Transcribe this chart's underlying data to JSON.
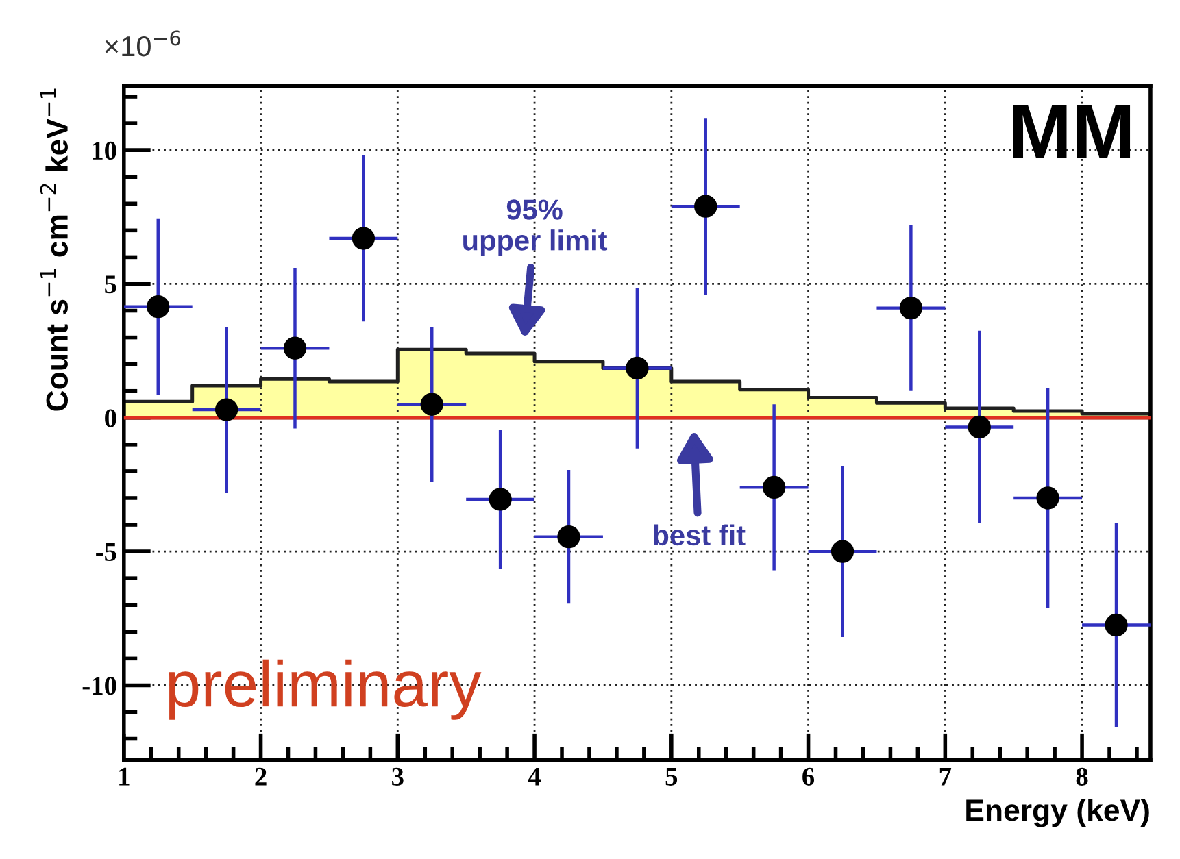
{
  "chart_data": {
    "type": "scatter",
    "ylabel": "Count s$^{−1}$ cm$^{−2}$ keV$^{−1}$",
    "xlabel": "Energy (keV)",
    "xlim": [
      1,
      8.5
    ],
    "xticks": [
      1,
      2,
      3,
      4,
      5,
      6,
      7,
      8
    ],
    "ylim": [
      -12.8,
      12.4
    ],
    "yticks": [
      -10,
      -5,
      0,
      5,
      10
    ],
    "grid": true,
    "legend": false,
    "series": [
      {
        "type": "area",
        "color": "#ffffa0",
        "x": [
          1,
          1.5,
          2,
          2.5,
          3,
          3.5,
          4,
          4.5,
          5,
          5.5,
          6,
          6.5,
          7,
          7.5,
          8,
          8.5
        ],
        "values": [
          0.6,
          1.2,
          1.45,
          1.35,
          2.55,
          2.4,
          2.1,
          1.85,
          1.35,
          1.05,
          0.75,
          0.55,
          0.35,
          0.25,
          0.15,
          0.15
        ]
      },
      {
        "type": "line",
        "color": "#e03020",
        "x": [
          1,
          8.5
        ],
        "values": [
          0,
          0
        ]
      },
      {
        "color": "#000000",
        "marker": "circle",
        "x": [
          1.25,
          1.75,
          2.25,
          2.75,
          3.25,
          3.75,
          4.25,
          4.75,
          5.25,
          5.75,
          6.25,
          6.75,
          7.25,
          7.75,
          8.25
        ],
        "values": [
          4.15,
          0.3,
          2.6,
          6.7,
          0.5,
          -3.05,
          -4.45,
          1.85,
          7.9,
          -2.6,
          -5.0,
          4.1,
          -0.35,
          -3.0,
          -7.75
        ],
        "errors": [
          3.3,
          3.1,
          3.0,
          3.1,
          2.9,
          2.6,
          2.5,
          3.0,
          3.3,
          3.1,
          3.2,
          3.1,
          3.6,
          4.1,
          3.8
        ],
        "xerrors": [
          0.25,
          0.25,
          0.25,
          0.25,
          0.25,
          0.25,
          0.25,
          0.25,
          0.25,
          0.25,
          0.25,
          0.25,
          0.25,
          0.25,
          0.25
        ]
      }
    ],
    "annotations": [
      "×10$^{−6}$",
      "MM",
      "preliminary",
      "95%\nupper limit",
      "best fit"
    ]
  }
}
